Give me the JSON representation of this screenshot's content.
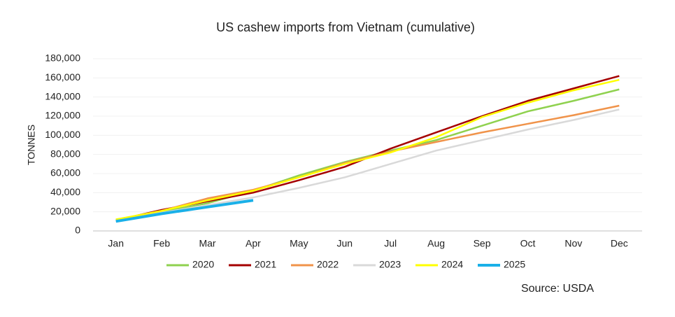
{
  "chart_data": {
    "type": "line",
    "title": "US cashew imports from Vietnam (cumulative)",
    "y_label": "TONNES",
    "source": "Source: USDA",
    "categories": [
      "Jan",
      "Feb",
      "Mar",
      "Apr",
      "May",
      "Jun",
      "Jul",
      "Aug",
      "Sep",
      "Oct",
      "Nov",
      "Dec"
    ],
    "series": [
      {
        "name": "2020",
        "color": "#8fd14f",
        "values": [
          12000,
          20000,
          29000,
          42000,
          58000,
          72000,
          84000,
          95000,
          110000,
          125000,
          136000,
          148000
        ]
      },
      {
        "name": "2021",
        "color": "#a50000",
        "values": [
          11000,
          22000,
          31000,
          40000,
          53000,
          67000,
          86000,
          103000,
          120000,
          136000,
          149000,
          162000
        ]
      },
      {
        "name": "2022",
        "color": "#f0934a",
        "values": [
          11000,
          21000,
          34000,
          43000,
          56000,
          71000,
          83000,
          93000,
          103000,
          112000,
          121000,
          131000
        ]
      },
      {
        "name": "2023",
        "color": "#d9d9d9",
        "values": [
          10000,
          19000,
          27000,
          35000,
          45000,
          56000,
          70000,
          84000,
          95000,
          106000,
          116000,
          127000
        ]
      },
      {
        "name": "2024",
        "color": "#ffff00",
        "values": [
          12000,
          21000,
          32000,
          42000,
          56000,
          70000,
          82000,
          98000,
          119000,
          134000,
          147000,
          158000
        ]
      },
      {
        "name": "2025",
        "color": "#1ab0e8",
        "values": [
          10000,
          18000,
          25000,
          32000,
          null,
          null,
          null,
          null,
          null,
          null,
          null,
          null
        ]
      }
    ],
    "ylim": [
      0,
      180000
    ],
    "yticks": [
      0,
      {
        "value": 20000,
        "label": "20,000"
      },
      {
        "value": 40000,
        "label": "40,000"
      },
      {
        "value": 60000,
        "label": "60,000"
      },
      {
        "value": 80000,
        "label": "80,000"
      },
      {
        "value": 100000,
        "label": "100,000"
      },
      {
        "value": 120000,
        "label": "120,000"
      },
      {
        "value": 140000,
        "label": "140,000"
      },
      {
        "value": 160000,
        "label": "160,000"
      },
      {
        "value": 180000,
        "label": "180,000"
      }
    ],
    "grid": true,
    "legend": "bottom"
  }
}
